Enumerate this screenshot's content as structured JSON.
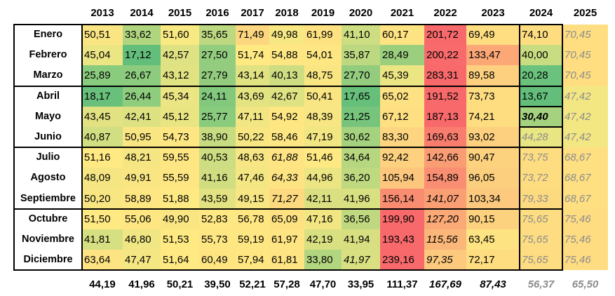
{
  "years": [
    "2013",
    "2014",
    "2015",
    "2016",
    "2017",
    "2018",
    "2019",
    "2020",
    "2021",
    "2022",
    "2023",
    "2024",
    "2025"
  ],
  "rows": [
    {
      "month": "Enero",
      "values": [
        "50,51",
        "33,62",
        "51,60",
        "35,65",
        "71,49",
        "49,98",
        "61,99",
        "41,10",
        "60,17",
        "201,72",
        "69,49",
        "74,10",
        "70,45"
      ],
      "colors": [
        "#f9e683",
        "#b0d57f",
        "#f9e983",
        "#bcd880",
        "#fdd780",
        "#f7e883",
        "#fee282",
        "#cddd81",
        "#fee382",
        "#f8696b",
        "#fede81",
        "#fedd81",
        "#fede81"
      ],
      "styles": [
        "",
        "",
        "",
        "",
        "",
        "",
        "",
        "",
        "",
        "",
        "",
        "",
        "proj"
      ]
    },
    {
      "month": "Febrero",
      "values": [
        "45,04",
        "17,12",
        "42,57",
        "27,50",
        "51,74",
        "54,88",
        "54,01",
        "35,87",
        "28,49",
        "200,22",
        "133,47",
        "40,00",
        "70,45"
      ],
      "colors": [
        "#ebe583",
        "#63be7b",
        "#dfe282",
        "#92cc7e",
        "#fee983",
        "#fee783",
        "#fee783",
        "#bcd880",
        "#9bcf7e",
        "#f86a6b",
        "#fba776",
        "#c8dc81",
        "#fede81"
      ],
      "styles": [
        "",
        "",
        "",
        "",
        "",
        "",
        "",
        "",
        "",
        "",
        "",
        "",
        "proj"
      ]
    },
    {
      "month": "Marzo",
      "values": [
        "25,89",
        "26,67",
        "43,12",
        "27,79",
        "43,14",
        "40,13",
        "48,75",
        "27,70",
        "45,39",
        "283,31",
        "89,58",
        "20,28",
        "70,45"
      ],
      "colors": [
        "#8acc7e",
        "#8dcc7e",
        "#e1e282",
        "#93cc7e",
        "#e1e282",
        "#cedd81",
        "#f9e683",
        "#93cc7e",
        "#ece583",
        "#f8696b",
        "#fdd07f",
        "#6bc27c",
        "#fede81"
      ],
      "styles": [
        "",
        "",
        "",
        "",
        "",
        "",
        "",
        "",
        "",
        "",
        "",
        "",
        "proj"
      ]
    },
    {
      "month": "Abril",
      "values": [
        "18,17",
        "26,44",
        "45,34",
        "24,11",
        "43,69",
        "42,67",
        "50,41",
        "17,65",
        "65,02",
        "191,52",
        "73,73",
        "13,67",
        "47,42"
      ],
      "colors": [
        "#68c07b",
        "#8ecc7e",
        "#ece583",
        "#82c97d",
        "#e4e382",
        "#dee282",
        "#f9e683",
        "#66bf7b",
        "#fee182",
        "#f8696b",
        "#fedd81",
        "#63be7b",
        "#f2e783"
      ],
      "styles": [
        "",
        "",
        "",
        "",
        "",
        "",
        "",
        "",
        "",
        "",
        "",
        "",
        "proj"
      ]
    },
    {
      "month": "Mayo",
      "values": [
        "43,45",
        "42,41",
        "45,12",
        "25,77",
        "47,11",
        "54,92",
        "48,39",
        "21,25",
        "67,12",
        "187,13",
        "74,21",
        "30,40",
        "47,42"
      ],
      "colors": [
        "#e2e282",
        "#dde182",
        "#e9e583",
        "#8acc7e",
        "#f1e683",
        "#fee783",
        "#f7e683",
        "#77c57c",
        "#fee082",
        "#f8696b",
        "#fedd81",
        "#a4d27f",
        "#f2e783"
      ],
      "styles": [
        "",
        "",
        "",
        "",
        "",
        "",
        "",
        "",
        "",
        "",
        "",
        "bold",
        "proj"
      ]
    },
    {
      "month": "Junio",
      "values": [
        "40,87",
        "50,95",
        "54,73",
        "38,90",
        "50,22",
        "58,46",
        "47,19",
        "30,62",
        "83,30",
        "169,63",
        "93,02",
        "44,28",
        "47,42"
      ],
      "colors": [
        "#d1de81",
        "#f9e683",
        "#fee783",
        "#c7dc81",
        "#f8e683",
        "#fee683",
        "#f2e683",
        "#a4d27f",
        "#fdd580",
        "#f97d6e",
        "#fdd07f",
        "#e8e583",
        "#f2e783"
      ],
      "styles": [
        "",
        "",
        "",
        "",
        "",
        "",
        "",
        "",
        "",
        "",
        "",
        "proj",
        "proj"
      ]
    },
    {
      "month": "Julio",
      "values": [
        "51,16",
        "48,21",
        "59,55",
        "40,53",
        "48,63",
        "61,88",
        "51,46",
        "34,64",
        "92,42",
        "142,66",
        "90,47",
        "73,75",
        "68,67"
      ],
      "colors": [
        "#fee983",
        "#f6e683",
        "#fee682",
        "#cddd81",
        "#f7e683",
        "#fee482",
        "#fee983",
        "#b6d680",
        "#fdd17f",
        "#fa9d74",
        "#fdd27f",
        "#fedd81",
        "#fedf82"
      ],
      "styles": [
        "",
        "",
        "",
        "",
        "",
        "it",
        "",
        "",
        "",
        "",
        "",
        "proj",
        "proj"
      ]
    },
    {
      "month": "Agosto",
      "values": [
        "48,09",
        "49,91",
        "55,59",
        "41,16",
        "47,46",
        "64,33",
        "44,96",
        "36,20",
        "105,94",
        "154,89",
        "96,05",
        "73,72",
        "68,67"
      ],
      "colors": [
        "#f5e683",
        "#f9e683",
        "#fee783",
        "#d0dd81",
        "#f3e683",
        "#fee382",
        "#ebe583",
        "#bed980",
        "#fcc67d",
        "#fa8e72",
        "#fccf7f",
        "#fedd81",
        "#fedf82"
      ],
      "styles": [
        "",
        "",
        "",
        "",
        "",
        "it",
        "",
        "",
        "",
        "",
        "",
        "proj",
        "proj"
      ]
    },
    {
      "month": "Septiembre",
      "values": [
        "50,20",
        "58,89",
        "51,88",
        "43,59",
        "49,15",
        "71,27",
        "42,11",
        "41,96",
        "156,14",
        "141,07",
        "103,34",
        "79,33",
        "68,67"
      ],
      "colors": [
        "#f8e683",
        "#fee683",
        "#fee983",
        "#e2e282",
        "#f7e683",
        "#fdd980",
        "#dae082",
        "#d9e082",
        "#f98d71",
        "#fa9f74",
        "#fcc97e",
        "#fdda80",
        "#fedf82"
      ],
      "styles": [
        "",
        "",
        "",
        "",
        "",
        "it",
        "",
        "",
        "",
        "it",
        "",
        "proj",
        "proj"
      ]
    },
    {
      "month": "Octubre",
      "values": [
        "51,50",
        "55,06",
        "49,90",
        "52,83",
        "56,78",
        "65,09",
        "47,16",
        "36,56",
        "199,90",
        "127,20",
        "90,15",
        "75,65",
        "75,46"
      ],
      "colors": [
        "#fee983",
        "#fee783",
        "#f9e683",
        "#fee883",
        "#fee783",
        "#fee282",
        "#f2e683",
        "#c0d980",
        "#f8696b",
        "#fba976",
        "#fdd27f",
        "#fedc81",
        "#fedc81"
      ],
      "styles": [
        "",
        "",
        "",
        "",
        "",
        "",
        "",
        "",
        "",
        "it",
        "",
        "proj",
        "proj"
      ]
    },
    {
      "month": "Noviembre",
      "values": [
        "41,81",
        "46,80",
        "51,53",
        "55,73",
        "59,19",
        "61,97",
        "42,19",
        "41,94",
        "193,43",
        "115,56",
        "63,45",
        "75,65",
        "75,46"
      ],
      "colors": [
        "#d6df81",
        "#f0e683",
        "#fee983",
        "#fee783",
        "#fee682",
        "#fee482",
        "#d8e081",
        "#d7df81",
        "#f8696b",
        "#fbb779",
        "#fee382",
        "#fedc81",
        "#fedc81"
      ],
      "styles": [
        "",
        "",
        "",
        "",
        "",
        "",
        "",
        "",
        "",
        "it",
        "",
        "proj",
        "proj"
      ]
    },
    {
      "month": "Diciembre",
      "values": [
        "63,64",
        "47,47",
        "51,64",
        "60,49",
        "57,94",
        "61,81",
        "33,80",
        "41,97",
        "239,16",
        "97,35",
        "72,17",
        "75,65",
        "75,46"
      ],
      "colors": [
        "#fee382",
        "#f3e683",
        "#fee983",
        "#fee582",
        "#fee682",
        "#fee482",
        "#b2d580",
        "#d9e082",
        "#f8696b",
        "#fcc97e",
        "#fedd81",
        "#fedc81",
        "#fedc81"
      ],
      "styles": [
        "",
        "",
        "",
        "",
        "",
        "",
        "",
        "it",
        "",
        "it",
        "",
        "proj",
        "proj"
      ]
    }
  ],
  "averages": [
    "44,19",
    "41,96",
    "50,21",
    "39,50",
    "52,21",
    "57,28",
    "47,70",
    "33,95",
    "111,37",
    "167,69",
    "87,43",
    "56,37",
    "65,50"
  ],
  "average_styles": [
    "",
    "",
    "",
    "",
    "",
    "",
    "",
    "",
    "",
    "it",
    "it",
    "proj",
    "proj"
  ]
}
